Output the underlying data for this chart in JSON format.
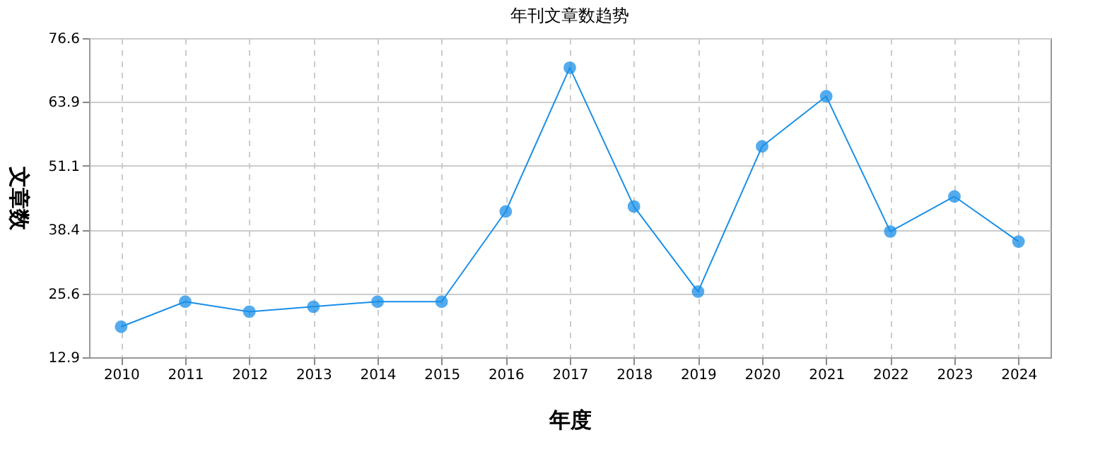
{
  "chart_data": {
    "type": "line",
    "title": "年刊文章数趋势",
    "xlabel": "年度",
    "ylabel": "文章数",
    "categories": [
      "2010",
      "2011",
      "2012",
      "2013",
      "2014",
      "2015",
      "2016",
      "2017",
      "2018",
      "2019",
      "2020",
      "2021",
      "2022",
      "2023",
      "2024"
    ],
    "series": [
      {
        "color": "#1a8fe8",
        "values": [
          19,
          24,
          22,
          23,
          24,
          24,
          42,
          70.7,
          43,
          26,
          55,
          65,
          38,
          45,
          36
        ]
      }
    ],
    "ylim": [
      12.9,
      76.6
    ],
    "yticks": [
      12.9,
      25.6,
      38.4,
      51.1,
      63.9,
      76.6
    ],
    "grid": true,
    "marker": "circle",
    "line_style": "solid"
  }
}
